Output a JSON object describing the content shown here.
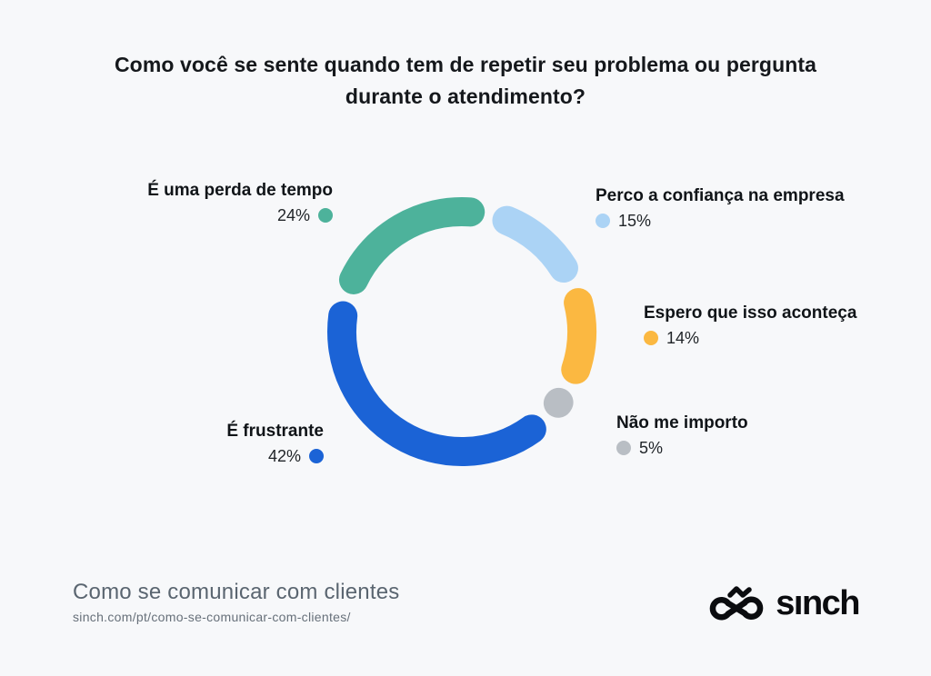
{
  "title": "Como você se sente quando tem de repetir seu problema ou pergunta durante o atendimento?",
  "chart_data": {
    "type": "pie",
    "variant": "segmented-donut-rounded-caps",
    "title": "Como você se sente quando tem de repetir seu problema ou pergunta durante o atendimento?",
    "unit": "%",
    "start_angle_deg": 13,
    "clockwise": true,
    "legend_position": "around",
    "segments": [
      {
        "id": "perco-confianca",
        "label": "Perco a confiança na empresa",
        "value": 15,
        "value_label": "15%",
        "color": "#ABD3F5"
      },
      {
        "id": "espero-aconteca",
        "label": "Espero que isso aconteça",
        "value": 14,
        "value_label": "14%",
        "color": "#FBB841"
      },
      {
        "id": "nao-importo",
        "label": "Não me importo",
        "value": 5,
        "value_label": "5%",
        "color": "#B9BEC4"
      },
      {
        "id": "frustrante",
        "label": "É frustrante",
        "value": 42,
        "value_label": "42%",
        "color": "#1B63D6"
      },
      {
        "id": "perda-tempo",
        "label": "É uma perda de tempo",
        "value": 24,
        "value_label": "24%",
        "color": "#4DB29B"
      }
    ]
  },
  "footer": {
    "title": "Como se comunicar com clientes",
    "url": "sinch.com/pt/como-se-comunicar-com-clientes/"
  },
  "brand": {
    "wordmark": "sınch",
    "logo_icon": "sinch-infinity-knot"
  },
  "colors": {
    "background": "#F7F8FA",
    "title_text": "#15181C",
    "label_text": "#101418",
    "value_text": "#212529",
    "footer_title": "#5A6570",
    "footer_url": "#67707A",
    "logo": "#0B0C0F"
  }
}
